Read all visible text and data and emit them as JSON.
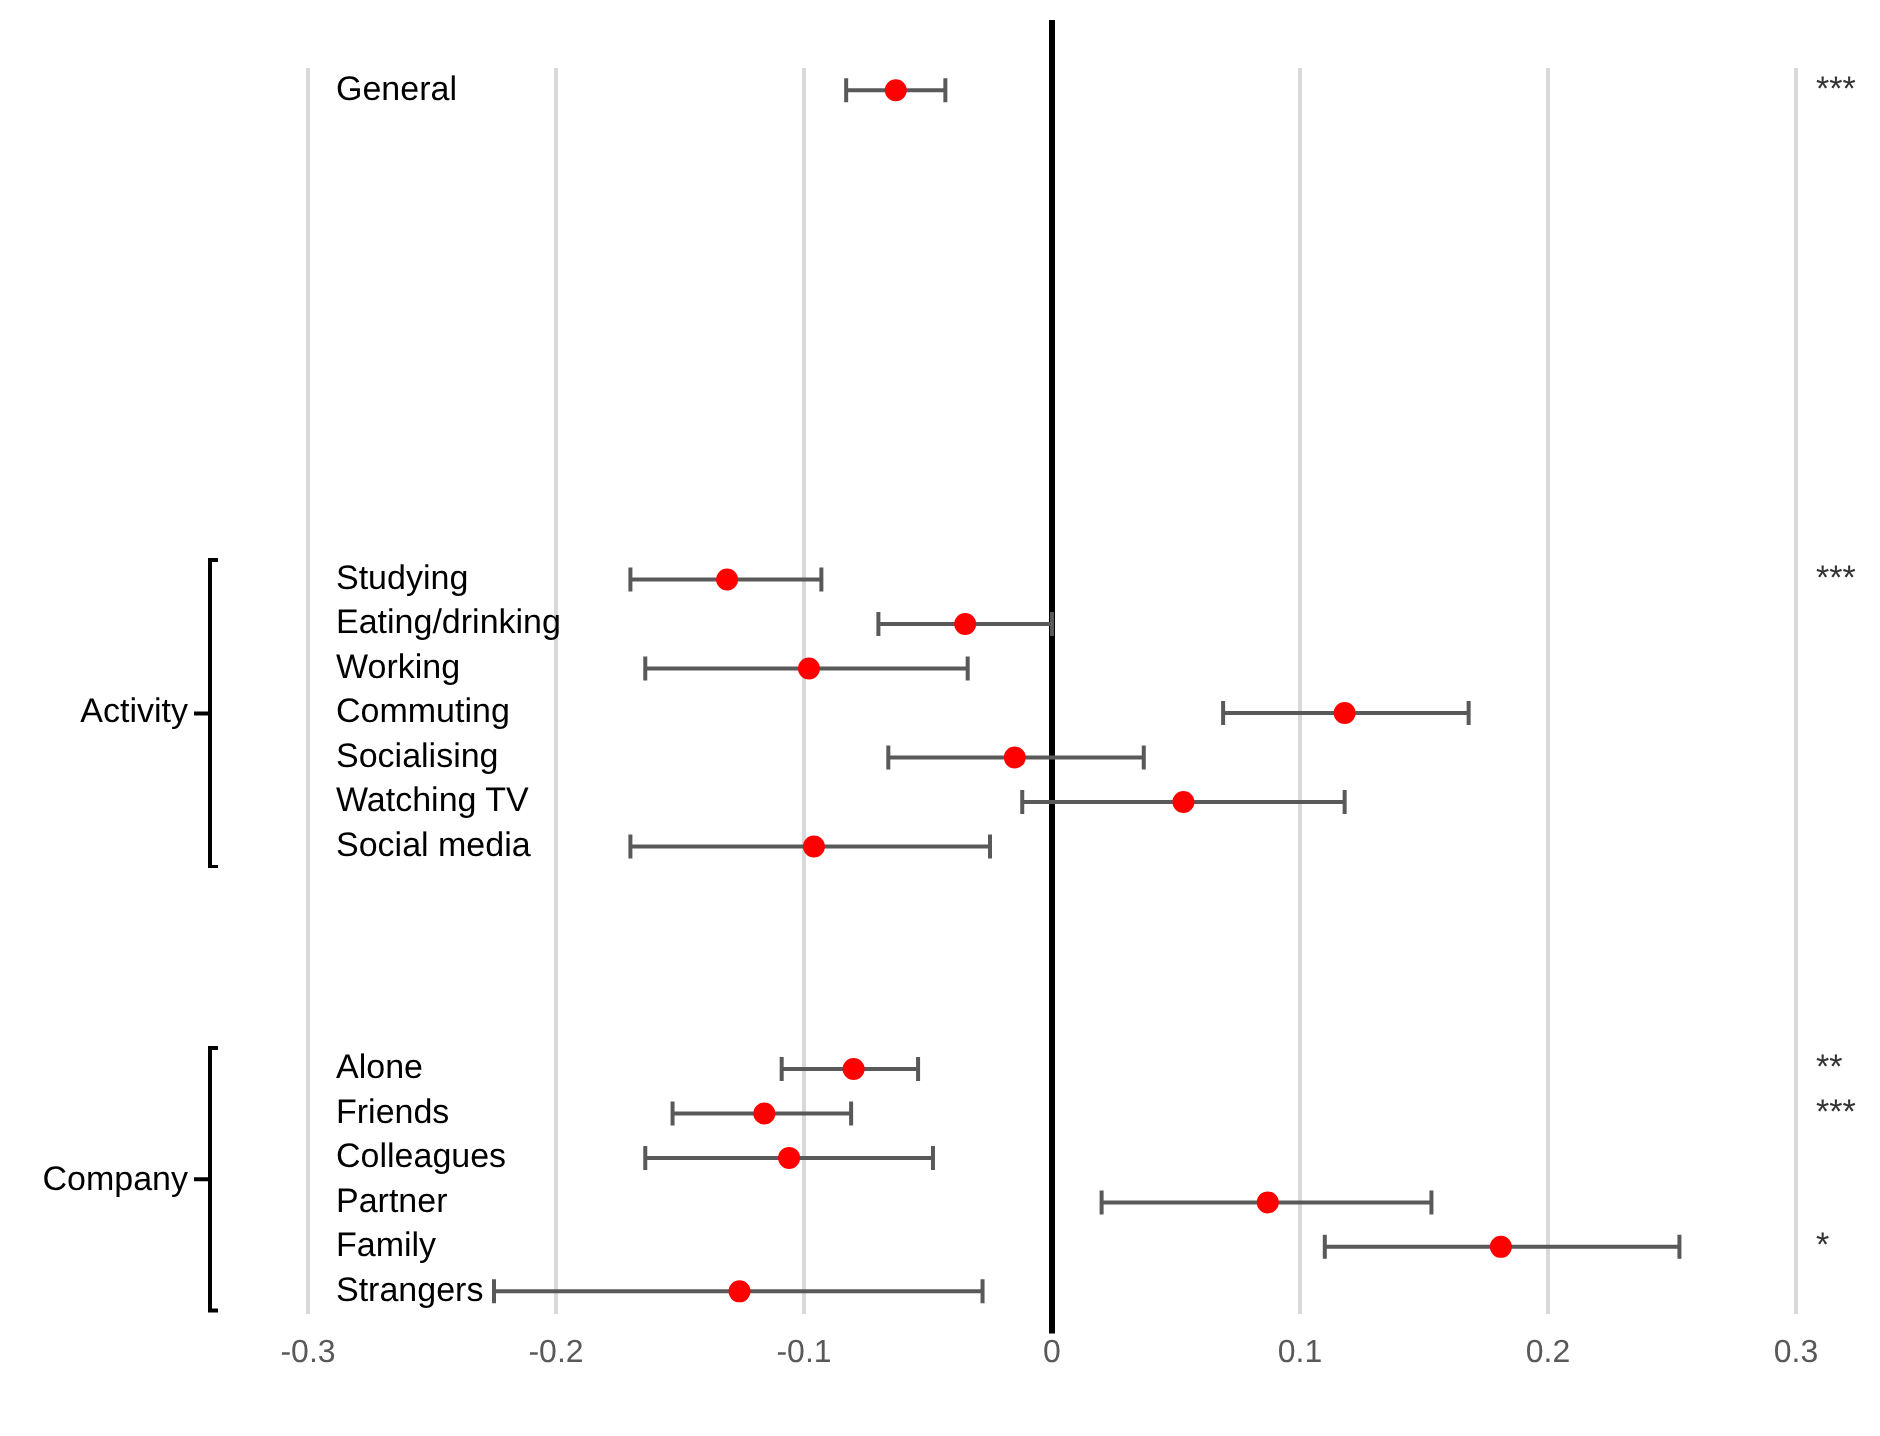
{
  "chart_data": {
    "type": "scatter",
    "orientation": "horizontal",
    "categories": [
      "General",
      null,
      null,
      null,
      null,
      null,
      null,
      null,
      null,
      null,
      null,
      "Studying",
      "Eating/drinking",
      "Working",
      "Commuting",
      "Socialising",
      "Watching TV",
      "Social media",
      null,
      null,
      null,
      null,
      "Alone",
      "Friends",
      "Colleagues",
      "Partner",
      "Family",
      "Strangers"
    ],
    "series": [
      {
        "color": "#ff0000",
        "values": [
          -0.063,
          null,
          null,
          null,
          null,
          null,
          null,
          null,
          null,
          null,
          null,
          -0.131,
          -0.035,
          -0.098,
          0.118,
          -0.015,
          0.053,
          -0.096,
          null,
          null,
          null,
          null,
          -0.08,
          -0.116,
          -0.106,
          0.087,
          0.181,
          -0.126
        ],
        "value_labels": [
          "***",
          null,
          null,
          null,
          null,
          null,
          null,
          null,
          null,
          null,
          null,
          "***",
          null,
          null,
          null,
          null,
          null,
          null,
          null,
          null,
          null,
          null,
          "**",
          "***",
          null,
          null,
          "*",
          null
        ],
        "errors": [
          [
            -0.083,
            -0.043
          ],
          null,
          null,
          null,
          null,
          null,
          null,
          null,
          null,
          null,
          null,
          [
            -0.17,
            -0.093
          ],
          [
            -0.07,
            0
          ],
          [
            -0.164,
            -0.034
          ],
          [
            0.069,
            0.168
          ],
          [
            -0.066,
            0.037
          ],
          [
            -0.012,
            0.118
          ],
          [
            -0.17,
            -0.025
          ],
          null,
          null,
          null,
          null,
          [
            -0.109,
            -0.054
          ],
          [
            -0.153,
            -0.081
          ],
          [
            -0.164,
            -0.048
          ],
          [
            0.02,
            0.153
          ],
          [
            0.11,
            0.253
          ],
          [
            -0.225,
            -0.028
          ]
        ]
      }
    ],
    "xlim": [
      -0.3,
      0.3
    ],
    "xticks": [
      -0.3,
      -0.2,
      -0.1,
      0,
      0.1,
      0.2,
      0.3
    ],
    "grid": "x",
    "legend": false,
    "marker": "circle",
    "ref_lines": [
      {
        "axis": "x",
        "value": 0,
        "color": "#000000"
      }
    ],
    "annotations": [
      "Activity",
      "Company"
    ]
  }
}
